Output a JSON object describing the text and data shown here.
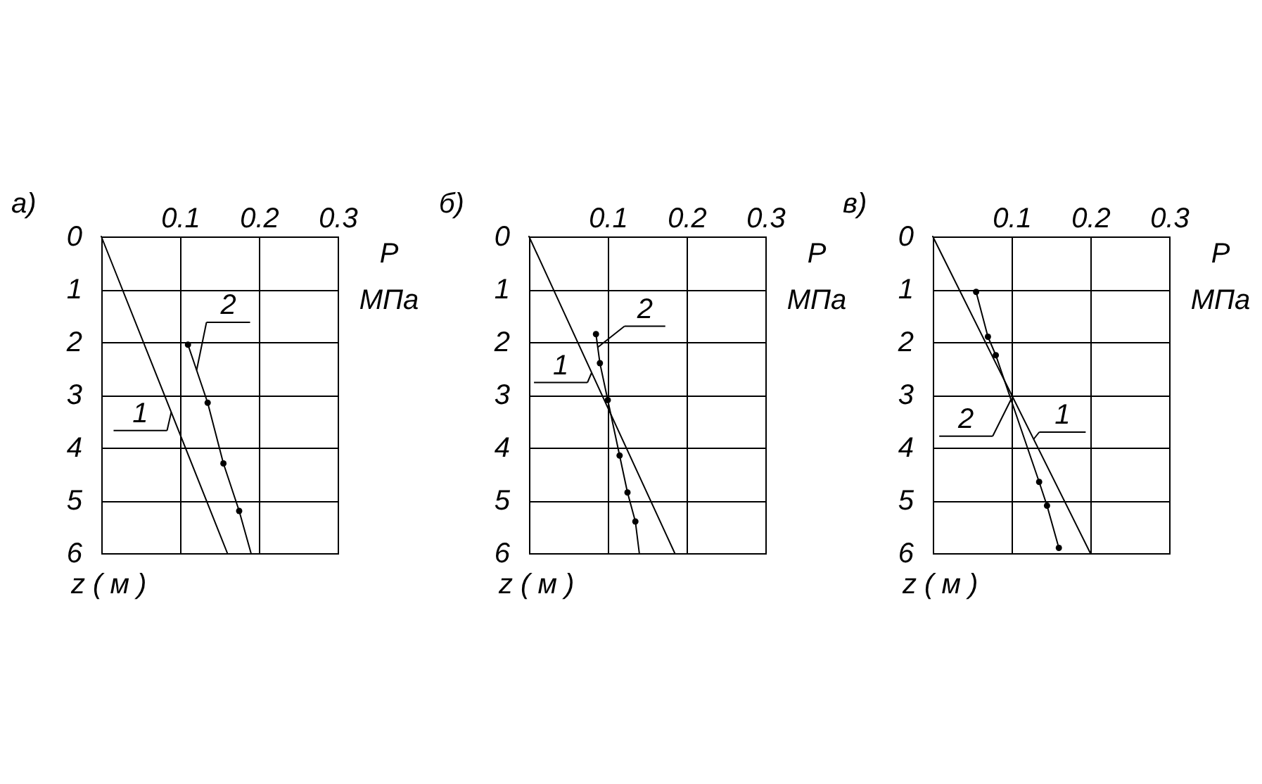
{
  "chart_data": [
    {
      "type": "line",
      "title": "а)",
      "xlabel": "P МПа",
      "ylabel": "z ( м )",
      "xlim": [
        0,
        0.3
      ],
      "xticks": [
        0.1,
        0.2,
        0.3
      ],
      "ylim": [
        6,
        0
      ],
      "yticks": [
        0,
        1,
        2,
        3,
        4,
        5,
        6
      ],
      "grid": true,
      "series": [
        {
          "name": "1",
          "color": "#000000",
          "x": [
            0,
            0.16
          ],
          "values": [
            0,
            6
          ]
        },
        {
          "name": "2",
          "color": "#000000",
          "x": [
            0.11,
            0.135,
            0.155,
            0.175,
            0.19
          ],
          "values": [
            2.05,
            3.15,
            4.3,
            5.2,
            6
          ]
        },
        {
          "type": "scatter",
          "color": "#000000",
          "marker": "circle",
          "x": [
            0.11,
            0.135,
            0.155,
            0.175
          ],
          "values": [
            2.05,
            3.15,
            4.3,
            5.2
          ]
        }
      ]
    },
    {
      "type": "line",
      "title": "б)",
      "xlabel": "P МПа",
      "ylabel": "z ( м )",
      "xlim": [
        0,
        0.3
      ],
      "xticks": [
        0.1,
        0.2,
        0.3
      ],
      "ylim": [
        6,
        0
      ],
      "yticks": [
        0,
        1,
        2,
        3,
        4,
        5,
        6
      ],
      "grid": true,
      "series": [
        {
          "name": "1",
          "color": "#000000",
          "x": [
            0,
            0.185
          ],
          "values": [
            0,
            6
          ]
        },
        {
          "name": "2",
          "color": "#000000",
          "x": [
            0.085,
            0.09,
            0.1,
            0.115,
            0.125,
            0.135,
            0.14
          ],
          "values": [
            1.85,
            2.4,
            3.1,
            4.15,
            4.85,
            5.4,
            6
          ]
        },
        {
          "type": "scatter",
          "color": "#000000",
          "marker": "circle",
          "x": [
            0.085,
            0.09,
            0.1,
            0.115,
            0.125,
            0.135
          ],
          "values": [
            1.85,
            2.4,
            3.1,
            4.15,
            4.85,
            5.4
          ]
        }
      ]
    },
    {
      "type": "line",
      "title": "в)",
      "xlabel": "P МПа",
      "ylabel": "z ( м )",
      "xlim": [
        0,
        0.3
      ],
      "xticks": [
        0.1,
        0.2,
        0.3
      ],
      "ylim": [
        6,
        0
      ],
      "yticks": [
        0,
        1,
        2,
        3,
        4,
        5,
        6
      ],
      "grid": true,
      "series": [
        {
          "name": "1",
          "color": "#000000",
          "x": [
            0,
            0.2
          ],
          "values": [
            0,
            6
          ]
        },
        {
          "name": "2",
          "color": "#000000",
          "x": [
            0.055,
            0.07,
            0.08,
            0.135,
            0.145,
            0.16
          ],
          "values": [
            1.05,
            1.9,
            2.25,
            4.65,
            5.1,
            5.9
          ]
        },
        {
          "type": "scatter",
          "color": "#000000",
          "marker": "circle",
          "x": [
            0.055,
            0.07,
            0.08,
            0.135,
            0.145,
            0.16
          ],
          "values": [
            1.05,
            1.9,
            2.25,
            4.65,
            5.1,
            5.9
          ]
        }
      ]
    }
  ]
}
